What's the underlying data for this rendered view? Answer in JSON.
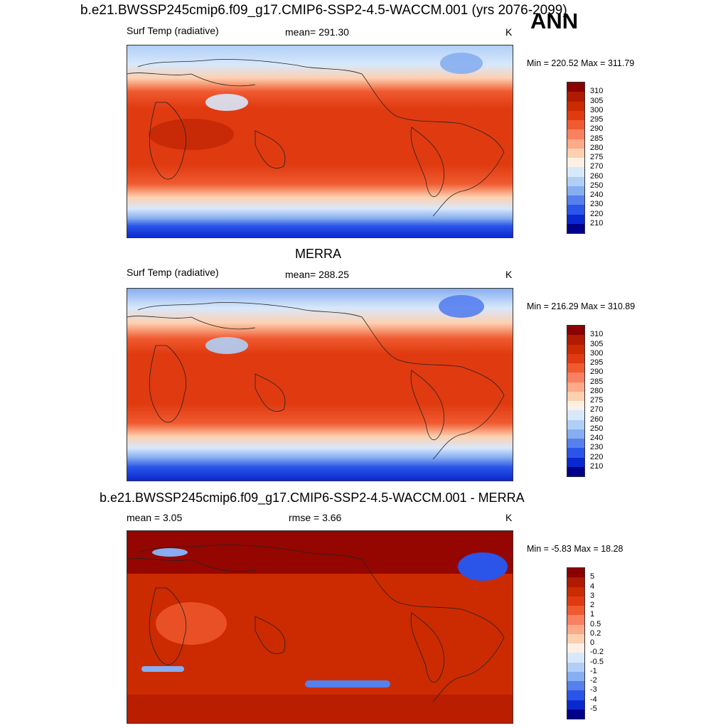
{
  "season": "ANN",
  "panels": [
    {
      "title": "b.e21.BWSSP245cmip6.f09_g17.CMIP6-SSP2-4.5-WACCM.001 (yrs 2076-2099)",
      "left_label": "Surf Temp (radiative)",
      "mid_label": "mean= 291.30",
      "units": "K",
      "minmax": "Min = 220.52 Max = 311.79",
      "colorbar_labels": [
        "310",
        "305",
        "300",
        "295",
        "290",
        "285",
        "280",
        "275",
        "270",
        "260",
        "250",
        "240",
        "230",
        "220",
        "210"
      ],
      "colorbar_colors": [
        "#8b0000",
        "#b01a00",
        "#cc2a00",
        "#e03a10",
        "#f05a30",
        "#f98060",
        "#fcaa88",
        "#fdd0b0",
        "#fef0e4",
        "#d8e8fb",
        "#b0cff7",
        "#86aef0",
        "#5580ee",
        "#2a55e8",
        "#0a28d0",
        "#00008a"
      ]
    },
    {
      "title": "MERRA",
      "left_label": "Surf Temp (radiative)",
      "mid_label": "mean= 288.25",
      "units": "K",
      "minmax": "Min = 216.29 Max = 310.89",
      "colorbar_labels": [
        "310",
        "305",
        "300",
        "295",
        "290",
        "285",
        "280",
        "275",
        "270",
        "260",
        "250",
        "240",
        "230",
        "220",
        "210"
      ],
      "colorbar_colors": [
        "#8b0000",
        "#b01a00",
        "#cc2a00",
        "#e03a10",
        "#f05a30",
        "#f98060",
        "#fcaa88",
        "#fdd0b0",
        "#fef0e4",
        "#d8e8fb",
        "#b0cff7",
        "#86aef0",
        "#5580ee",
        "#2a55e8",
        "#0a28d0",
        "#00008a"
      ]
    },
    {
      "title": "b.e21.BWSSP245cmip6.f09_g17.CMIP6-SSP2-4.5-WACCM.001 - MERRA",
      "left_label": "mean =   3.05",
      "mid_label": "rmse =   3.66",
      "units": "K",
      "minmax": "Min =  -5.83 Max =  18.28",
      "colorbar_labels": [
        "5",
        "4",
        "3",
        "2",
        "1",
        "0.5",
        "0.2",
        "0",
        "-0.2",
        "-0.5",
        "-1",
        "-2",
        "-3",
        "-4",
        "-5"
      ],
      "colorbar_colors": [
        "#8b0000",
        "#b01a00",
        "#cc2a00",
        "#e03a10",
        "#f05a30",
        "#f98060",
        "#fcaa88",
        "#fdd0b0",
        "#fef0e4",
        "#d8e8fb",
        "#b0cff7",
        "#86aef0",
        "#5580ee",
        "#2a55e8",
        "#0a28d0",
        "#00008a"
      ]
    }
  ],
  "map_colors": {
    "polar_cold": "#0a28d0",
    "cold": "#5580ee",
    "cool": "#b0cff7",
    "mild": "#fdd0b0",
    "warm": "#f05a30",
    "hot": "#e03a10",
    "hottest": "#b01a00",
    "diff_base": "#cc2a00",
    "diff_high": "#8b0000",
    "diff_neg": "#2a55e8"
  }
}
